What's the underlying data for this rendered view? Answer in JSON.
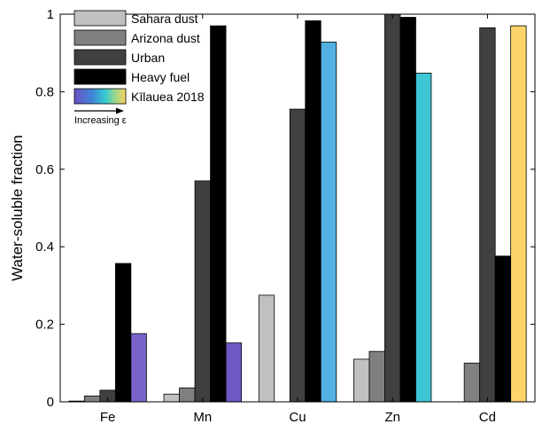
{
  "chart_data": {
    "type": "bar",
    "title": "",
    "xlabel": "",
    "ylabel": "Water-soluble fraction",
    "ylim": [
      0,
      1
    ],
    "yticks": [
      0,
      0.2,
      0.4,
      0.6,
      0.8,
      1
    ],
    "ytick_labels": [
      "0",
      "0.2",
      "0.4",
      "0.6",
      "0.8",
      "1"
    ],
    "categories": [
      "Fe",
      "Mn",
      "Cu",
      "Zn",
      "Cd"
    ],
    "legend_placement": "top-left",
    "legend_note": "Increasing ε",
    "series": [
      {
        "name": "Sahara dust",
        "color": "#c0c0c0",
        "values": [
          0.002,
          0.02,
          0.275,
          0.11,
          null
        ]
      },
      {
        "name": "Arizona dust",
        "color": "#808080",
        "values": [
          0.015,
          0.036,
          null,
          0.13,
          0.1
        ]
      },
      {
        "name": "Urban",
        "color": "#404040",
        "values": [
          0.03,
          0.57,
          0.755,
          1.0,
          0.965
        ]
      },
      {
        "name": "Heavy fuel",
        "color": "#000000",
        "values": [
          0.357,
          0.97,
          0.983,
          0.992,
          0.376
        ]
      },
      {
        "name": "Kīlauea 2018",
        "color_scale": [
          "#6a52c4",
          "#3f86d6",
          "#4fc0e0",
          "#35c9d2",
          "#f9d25e"
        ],
        "values": [
          0.176,
          0.152,
          0.928,
          0.848,
          0.97
        ],
        "colors": [
          "#7a63c8",
          "#6d58c4",
          "#52b0e2",
          "#3ec6d6",
          "#fdd46a"
        ]
      }
    ]
  }
}
